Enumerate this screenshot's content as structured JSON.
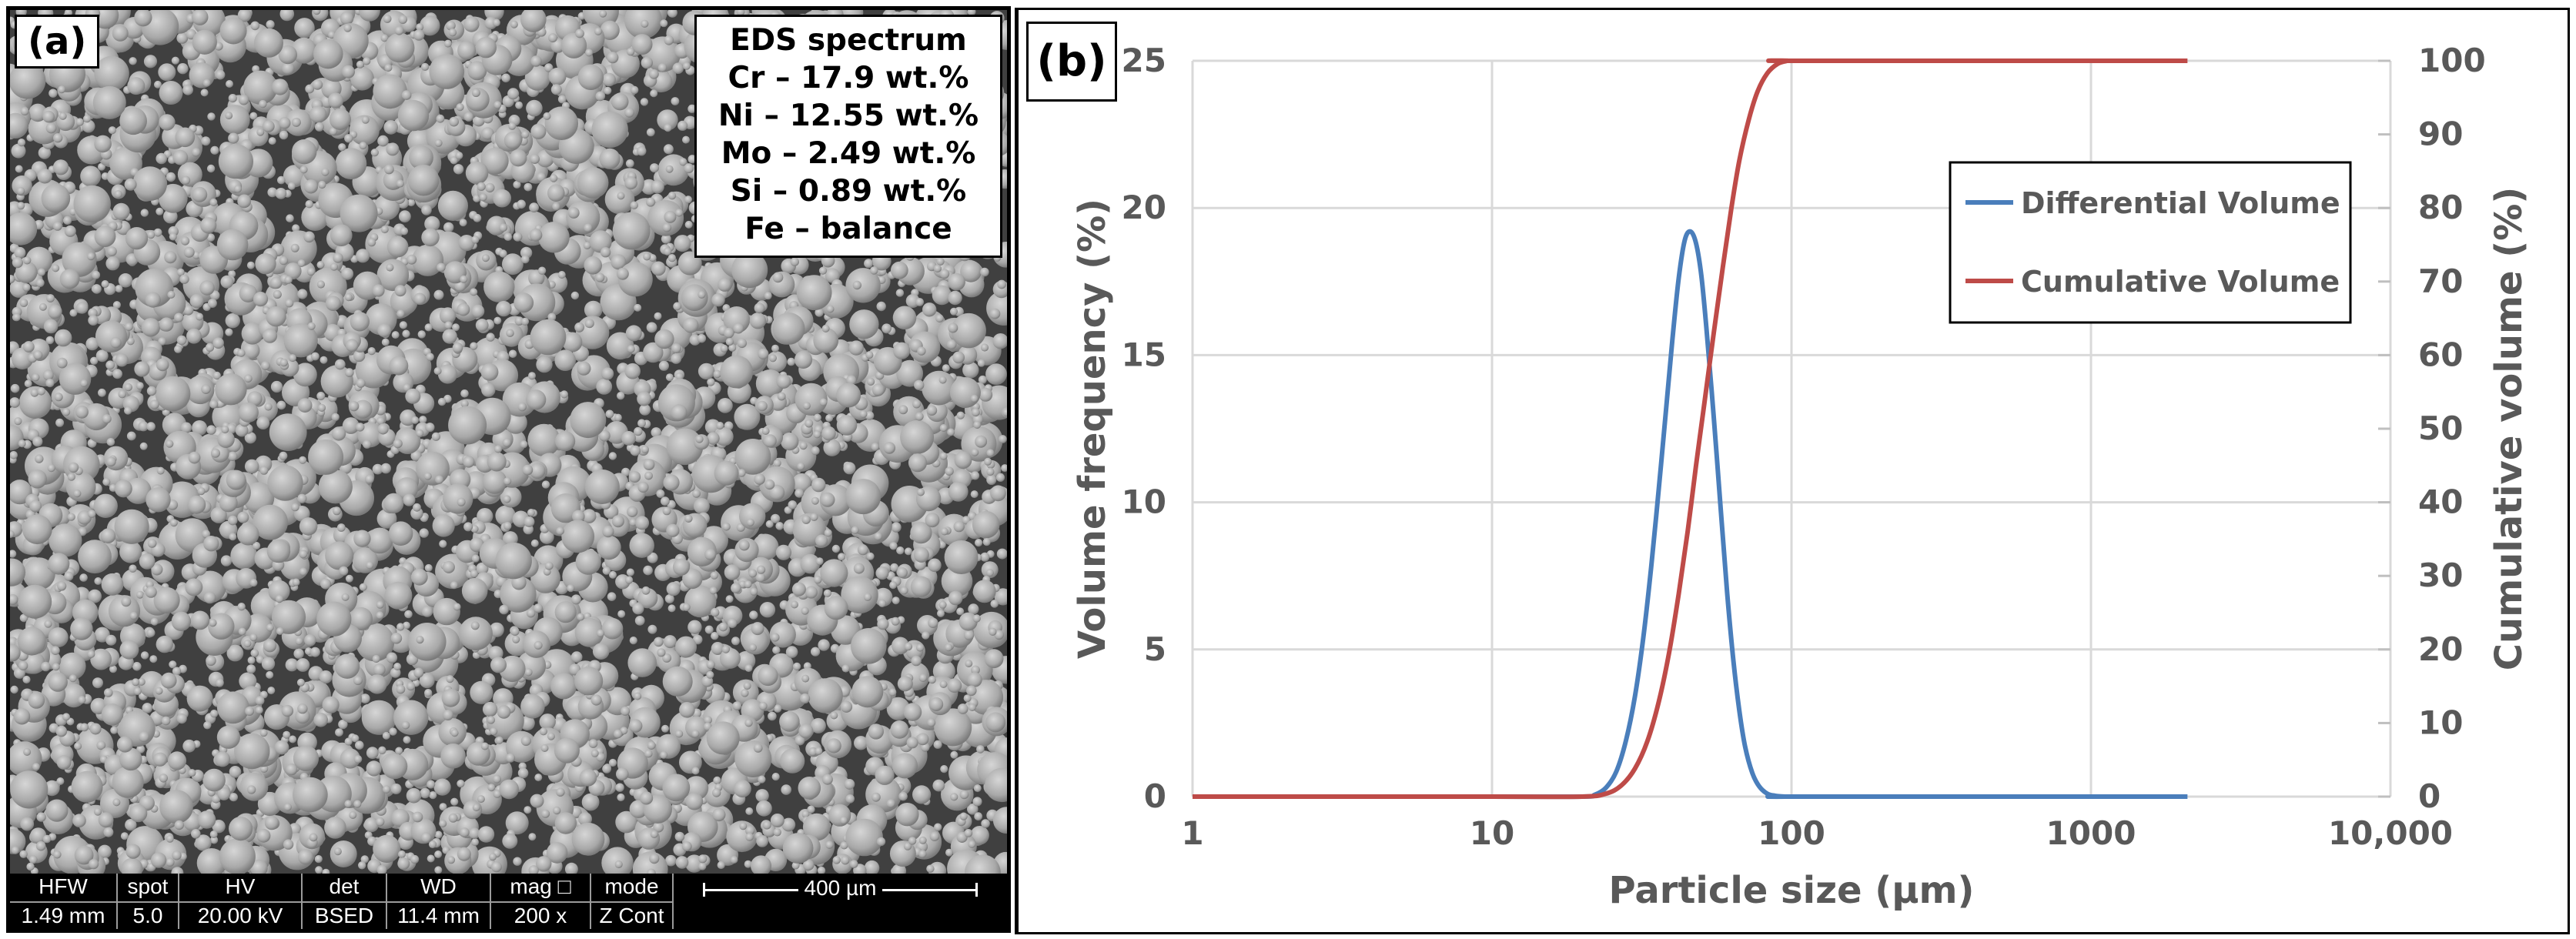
{
  "panel_a": {
    "label": "(a)",
    "eds": {
      "title": "EDS spectrum",
      "lines": [
        "Cr – 17.9 wt.%",
        "Ni – 12.55 wt.%",
        "Mo – 2.49 wt.%",
        "Si – 0.89 wt.%",
        "Fe – balance"
      ]
    },
    "databar": {
      "columns": [
        {
          "header": "HFW",
          "value": "1.49 mm"
        },
        {
          "header": "spot",
          "value": "5.0"
        },
        {
          "header": "HV",
          "value": "20.00 kV"
        },
        {
          "header": "det",
          "value": "BSED"
        },
        {
          "header": "WD",
          "value": "11.4 mm"
        },
        {
          "header": "mag □",
          "value": "200 x"
        },
        {
          "header": "mode",
          "value": "Z Cont"
        }
      ],
      "scale_bar": "400 µm"
    }
  },
  "panel_b": {
    "label": "(b)"
  },
  "chart_data": {
    "type": "line",
    "title": "",
    "xlabel": "Particle size (µm)",
    "ylabel": "Volume frequency (%)",
    "y2label": "Cumulative volume (%)",
    "xscale": "log",
    "xlim": [
      1,
      10000
    ],
    "ylim": [
      0,
      25
    ],
    "y2lim": [
      0,
      100
    ],
    "xticks": [
      1,
      10,
      100,
      1000,
      10000
    ],
    "xtick_labels": [
      "1",
      "10",
      "100",
      "1000",
      "10,000"
    ],
    "yticks": [
      0,
      5,
      10,
      15,
      20,
      25
    ],
    "ytick_labels": [
      "0",
      "5",
      "10",
      "15",
      "20",
      "25"
    ],
    "y2ticks": [
      0,
      10,
      20,
      30,
      40,
      50,
      60,
      70,
      80,
      90,
      100
    ],
    "y2tick_labels": [
      "0",
      "10",
      "20",
      "30",
      "40",
      "50",
      "60",
      "70",
      "80",
      "90",
      "100"
    ],
    "grid": true,
    "legend": "top-right",
    "series": [
      {
        "name": "Differential Volume",
        "axis": "left",
        "color": "#4a7ebb",
        "x": [
          1,
          10,
          20,
          22,
          24,
          26,
          28,
          30,
          32,
          34,
          36,
          38,
          40,
          42,
          44,
          46,
          48,
          50,
          52,
          55,
          58,
          61,
          64,
          67,
          70,
          74,
          78,
          83,
          88,
          95,
          100,
          1000,
          2100
        ],
        "y": [
          0,
          0,
          0,
          0.06,
          0.3,
          0.85,
          1.9,
          3.4,
          5.4,
          7.8,
          10.4,
          13.0,
          15.5,
          17.6,
          18.9,
          19.2,
          18.8,
          17.7,
          15.9,
          12.9,
          9.8,
          6.9,
          4.6,
          2.9,
          1.7,
          0.8,
          0.35,
          0.1,
          0.03,
          0,
          0,
          0,
          0
        ]
      },
      {
        "name": "Cumulative Volume",
        "axis": "right",
        "color": "#be4b48",
        "x": [
          1,
          10,
          20,
          24,
          27,
          30,
          33,
          36,
          39,
          42,
          45,
          48,
          51,
          55,
          59,
          63,
          67,
          72,
          77,
          83,
          90,
          97,
          100,
          1000,
          2100
        ],
        "y": [
          0,
          0,
          0,
          0.4,
          1.5,
          3.8,
          7.5,
          12.8,
          19.5,
          27.5,
          36.0,
          45.0,
          53.0,
          63.0,
          72.0,
          80.0,
          86.5,
          92.0,
          95.8,
          98.3,
          99.6,
          100,
          100,
          100,
          100
        ]
      }
    ]
  }
}
